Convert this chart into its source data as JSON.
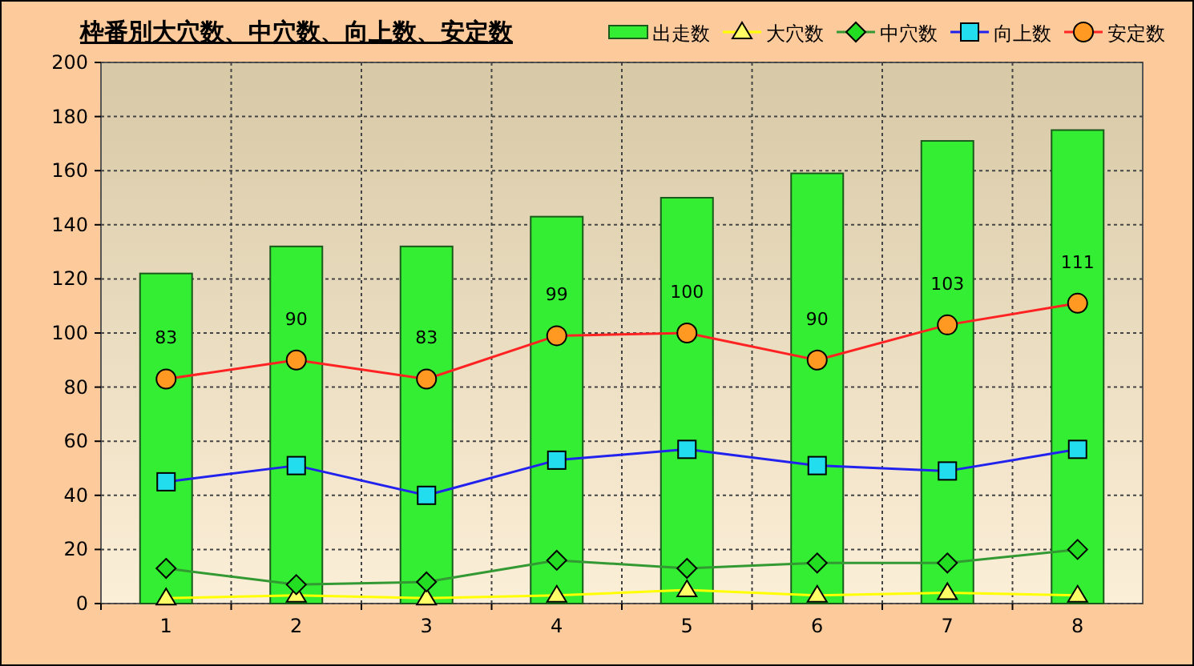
{
  "chart_data": {
    "type": "bar",
    "title": "枠番別大穴数、中穴数、向上数、安定数",
    "categories": [
      "1",
      "2",
      "3",
      "4",
      "5",
      "6",
      "7",
      "8"
    ],
    "ylim": [
      0,
      200
    ],
    "yticks": [
      0,
      20,
      40,
      60,
      80,
      100,
      120,
      140,
      160,
      180,
      200
    ],
    "grid": true,
    "legend": "top right",
    "series": [
      {
        "name": "出走数",
        "color": "#33ee33",
        "values": [
          122,
          132,
          132,
          143,
          150,
          159,
          171,
          175
        ]
      },
      {
        "name": "大穴数",
        "type": "line",
        "color": "#ffff00",
        "marker": "triangle",
        "values": [
          2,
          3,
          2,
          3,
          5,
          3,
          4,
          3
        ]
      },
      {
        "name": "中穴数",
        "type": "line",
        "color": "#339933",
        "marker": "diamond",
        "values": [
          13,
          7,
          8,
          16,
          13,
          15,
          15,
          20
        ]
      },
      {
        "name": "向上数",
        "type": "line",
        "color": "#2222ee",
        "marker": "square",
        "values": [
          45,
          51,
          40,
          53,
          57,
          51,
          49,
          57
        ]
      },
      {
        "name": "安定数",
        "type": "line",
        "color": "#ff2222",
        "marker": "circle",
        "values": [
          83,
          90,
          83,
          99,
          100,
          90,
          103,
          111
        ],
        "value_labels": [
          "83",
          "90",
          "83",
          "99",
          "100",
          "90",
          "103",
          "111"
        ]
      }
    ]
  }
}
